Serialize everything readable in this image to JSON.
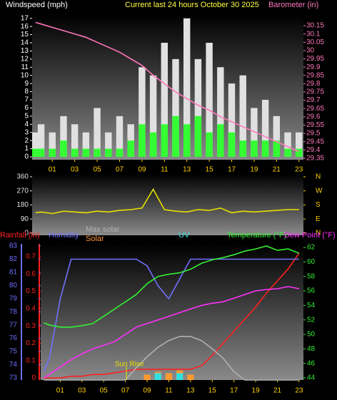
{
  "chart_data": [
    {
      "type": "combo",
      "title": "Current last 24 hours October 30 2025",
      "y_label": "Windspeed (mph)",
      "y2_label": "Barometer (in)",
      "x": [
        -0.5,
        0,
        1,
        2,
        3,
        4,
        5,
        6,
        7,
        8,
        9,
        10,
        11,
        12,
        13,
        14,
        15,
        16,
        17,
        18,
        19,
        20,
        21,
        22,
        23
      ],
      "xlim": [
        -0.8,
        23.4
      ],
      "xticks": [
        {
          "value": 1,
          "label": "01"
        },
        {
          "value": 3,
          "label": "03"
        },
        {
          "value": 5,
          "label": "05"
        },
        {
          "value": 7,
          "label": "07"
        },
        {
          "value": 9,
          "label": "09"
        },
        {
          "value": 11,
          "label": "11"
        },
        {
          "value": 13,
          "label": "13"
        },
        {
          "value": 15,
          "label": "15"
        },
        {
          "value": 17,
          "label": "17"
        },
        {
          "value": 19,
          "label": "19"
        },
        {
          "value": 21,
          "label": "21"
        },
        {
          "value": 23,
          "label": "23"
        }
      ],
      "ylim": [
        -0.35,
        17.5
      ],
      "yticks": [
        0,
        1,
        2,
        3,
        4,
        5,
        6,
        7,
        8,
        9,
        10,
        11,
        12,
        13,
        14,
        15,
        16,
        17
      ],
      "y2lim": [
        29.341,
        30.219
      ],
      "y2ticks": [
        29.35,
        29.4,
        29.45,
        29.5,
        29.55,
        29.6,
        29.65,
        29.7,
        29.75,
        29.8,
        29.85,
        29.9,
        29.95,
        30,
        30.05,
        30.1,
        30.15
      ],
      "series": [
        {
          "color": "#e0e0e0",
          "style": "bar",
          "values": [
            3,
            4,
            3,
            5,
            4,
            3,
            6,
            3,
            5,
            4,
            11,
            10,
            14,
            12,
            17,
            12,
            14,
            11,
            9,
            10,
            6,
            7,
            5,
            3,
            3
          ]
        },
        {
          "color": "#33ff33",
          "style": "bar",
          "values": [
            1,
            1,
            1,
            2,
            1,
            1,
            1,
            1,
            1,
            2,
            4,
            3,
            4,
            5,
            4,
            5,
            3,
            4,
            3,
            2,
            2,
            2,
            2,
            1,
            1
          ]
        },
        {
          "color": "#ff77bb",
          "style": "line",
          "axis": "y2",
          "values": [
            30.17,
            30.16,
            30.14,
            30.12,
            30.1,
            30.08,
            30.05,
            30.02,
            29.99,
            29.95,
            29.91,
            29.85,
            29.8,
            29.75,
            29.71,
            29.67,
            29.64,
            29.6,
            29.57,
            29.54,
            29.51,
            29.48,
            29.45,
            29.42,
            29.39
          ]
        }
      ]
    },
    {
      "type": "line",
      "x": [
        -0.5,
        0,
        1,
        2,
        3,
        4,
        5,
        6,
        7,
        8,
        9,
        10,
        11,
        12,
        13,
        14,
        15,
        16,
        17,
        18,
        19,
        20,
        21,
        22,
        23
      ],
      "xlim": [
        -0.8,
        23.4
      ],
      "ylim": [
        -14,
        378
      ],
      "yticks": [
        0,
        90,
        180,
        270,
        360
      ],
      "y2lim": [
        -14,
        378
      ],
      "y2ticks": [
        {
          "value": 360,
          "label": "N"
        },
        {
          "value": 270,
          "label": "W"
        },
        {
          "value": 180,
          "label": "S"
        },
        {
          "value": 90,
          "label": "E"
        },
        {
          "value": 0,
          "label": "N"
        }
      ],
      "series": [
        {
          "color": "#e8e000",
          "values": [
            130,
            135,
            125,
            140,
            135,
            130,
            140,
            135,
            145,
            150,
            160,
            280,
            150,
            140,
            135,
            150,
            145,
            160,
            130,
            140,
            135,
            140,
            145,
            150,
            150
          ]
        }
      ]
    },
    {
      "type": "combo",
      "x": [
        -0.5,
        0,
        1,
        2,
        3,
        4,
        5,
        6,
        7,
        8,
        9,
        10,
        11,
        12,
        13,
        14,
        15,
        16,
        17,
        18,
        19,
        20,
        21,
        22,
        23
      ],
      "xlim": [
        -0.8,
        23.4
      ],
      "xticks": [
        {
          "value": 1,
          "label": "01"
        },
        {
          "value": 3,
          "label": "03"
        },
        {
          "value": 5,
          "label": "05"
        },
        {
          "value": 7,
          "label": "07"
        },
        {
          "value": 9,
          "label": "09"
        },
        {
          "value": 11,
          "label": "11"
        },
        {
          "value": 13,
          "label": "13"
        },
        {
          "value": 15,
          "label": "15"
        },
        {
          "value": 17,
          "label": "17"
        },
        {
          "value": 19,
          "label": "19"
        },
        {
          "value": 21,
          "label": "21"
        },
        {
          "value": 23,
          "label": "23"
        }
      ],
      "ylim": [
        72.84,
        83.16
      ],
      "yticks": [
        73,
        74,
        75,
        76,
        77,
        78,
        79,
        80,
        81,
        82,
        83
      ],
      "y2lim": [
        43.7,
        62.5
      ],
      "y2ticks": [
        44,
        46,
        48,
        50,
        52,
        54,
        56,
        58,
        60,
        62
      ],
      "y3lim": [
        -0.012,
        0.774
      ],
      "y3ticks": [
        0,
        0.1,
        0.2,
        0.3,
        0.4,
        0.5,
        0.6,
        0.7
      ],
      "y4lim": [
        0,
        1000
      ],
      "y5lim": [
        0,
        20
      ],
      "annotations": [
        {
          "text": "Sun Rise",
          "x": 7.1
        }
      ],
      "series": [
        {
          "name": "Rainfall (in)",
          "color": "#ff2020",
          "style": "line",
          "axis": "y3",
          "values": [
            0,
            0,
            0,
            0.01,
            0.01,
            0.02,
            0.02,
            0.03,
            0.04,
            0.05,
            0.05,
            0.05,
            0.05,
            0.05,
            0.05,
            0.07,
            0.13,
            0.2,
            0.27,
            0.34,
            0.41,
            0.49,
            0.56,
            0.63,
            0.72
          ]
        },
        {
          "name": "Humidity",
          "color": "#7070ff",
          "style": "line",
          "axis": "y",
          "values": [
            73.5,
            74.5,
            79,
            82,
            82,
            82,
            82,
            82,
            82,
            82,
            81.5,
            80,
            79,
            80.5,
            82,
            82,
            82,
            82,
            82,
            82,
            82,
            82,
            82,
            82,
            82
          ]
        },
        {
          "name": "Max solar",
          "color": "#b0b0b0",
          "style": "line",
          "axis": "y4",
          "values": [
            0,
            0,
            0,
            0,
            0,
            0,
            0,
            0,
            0,
            90,
            170,
            240,
            290,
            320,
            320,
            290,
            230,
            160,
            60,
            0,
            0,
            0,
            0,
            0,
            0
          ]
        },
        {
          "name": "Solar",
          "color": "#ff9a30",
          "style": "bar",
          "axis": "y4",
          "values": [
            0,
            0,
            0,
            0,
            0,
            0,
            0,
            0,
            0,
            0,
            40,
            60,
            50,
            70,
            40,
            0,
            0,
            0,
            0,
            0,
            0,
            0,
            0,
            0,
            0
          ]
        },
        {
          "name": "UV",
          "color": "#30e0e0",
          "style": "bar",
          "axis": "y5",
          "values": [
            0,
            0,
            0,
            0,
            0,
            0,
            0,
            0,
            0,
            0,
            0,
            1,
            0,
            1,
            0,
            0,
            0,
            0,
            0,
            0,
            0,
            0,
            0,
            0,
            0
          ]
        },
        {
          "name": "Temperature (°F)",
          "color": "#33ee33",
          "style": "line",
          "axis": "y2",
          "values": [
            51.6,
            51.3,
            51,
            51,
            51.2,
            51.5,
            52.5,
            53.5,
            54.5,
            55.5,
            57,
            58,
            58.3,
            58.5,
            59,
            59.8,
            60.3,
            60.6,
            61,
            61.5,
            61.8,
            62.2,
            61.6,
            61.8,
            61.2
          ]
        },
        {
          "name": "Dew Point (°F)",
          "color": "#ff30ff",
          "style": "line",
          "axis": "y2",
          "values": [
            44,
            44.5,
            45.5,
            46.5,
            47.3,
            48,
            48.5,
            49,
            50,
            51,
            51.5,
            52,
            52.5,
            53,
            53.5,
            54,
            54.3,
            54.5,
            55,
            55.5,
            56,
            56.2,
            56.3,
            56.6,
            56.3
          ]
        }
      ]
    }
  ]
}
